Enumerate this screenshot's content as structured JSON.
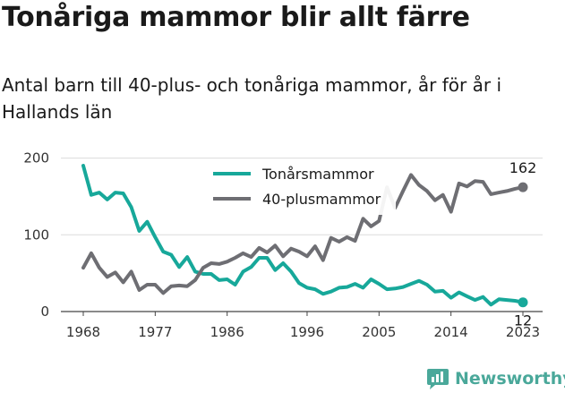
{
  "title": "Tonåriga mammor blir allt färre",
  "subtitle": "Antal barn till 40-plus- och tonåriga mammor, år för år i Hallands län",
  "brand": {
    "name": "Newsworthy",
    "icon": "newsworthy-logo-icon",
    "color": "#4aa89a"
  },
  "chart_data": {
    "type": "line",
    "x": [
      1968,
      1969,
      1970,
      1971,
      1972,
      1973,
      1974,
      1975,
      1976,
      1977,
      1978,
      1979,
      1980,
      1981,
      1982,
      1983,
      1984,
      1985,
      1986,
      1987,
      1988,
      1989,
      1990,
      1991,
      1992,
      1993,
      1994,
      1995,
      1996,
      1997,
      1998,
      1999,
      2000,
      2001,
      2002,
      2003,
      2004,
      2005,
      2006,
      2007,
      2008,
      2009,
      2010,
      2011,
      2012,
      2013,
      2014,
      2015,
      2016,
      2017,
      2018,
      2019,
      2020,
      2021,
      2022,
      2023
    ],
    "series": [
      {
        "name": "Tonårsmammor",
        "color": "#17a89a",
        "values": [
          190,
          152,
          155,
          146,
          155,
          154,
          136,
          105,
          117,
          97,
          78,
          74,
          58,
          71,
          52,
          49,
          49,
          41,
          42,
          35,
          52,
          58,
          70,
          70,
          54,
          63,
          52,
          37,
          31,
          29,
          23,
          26,
          31,
          32,
          36,
          31,
          42,
          36,
          29,
          30,
          32,
          36,
          40,
          35,
          26,
          27,
          18,
          25,
          20,
          15,
          19,
          9,
          16,
          15,
          14,
          12
        ]
      },
      {
        "name": "40-plusmammor",
        "color": "#6e6e73",
        "values": [
          57,
          76,
          57,
          45,
          51,
          38,
          52,
          28,
          35,
          35,
          24,
          33,
          34,
          33,
          41,
          57,
          63,
          62,
          65,
          70,
          76,
          71,
          83,
          77,
          86,
          72,
          82,
          78,
          72,
          85,
          67,
          96,
          91,
          97,
          92,
          121,
          111,
          118,
          162,
          135,
          157,
          178,
          165,
          157,
          145,
          152,
          130,
          167,
          163,
          170,
          169,
          153,
          155,
          157,
          160,
          162
        ]
      }
    ],
    "xticks": [
      "1968",
      "1977",
      "1986",
      "1996",
      "2005",
      "2014",
      "2023"
    ],
    "yticks": [
      "0",
      "100",
      "200"
    ],
    "ylim": [
      0,
      210
    ],
    "grid": true,
    "legend_position": "top-center",
    "end_labels": {
      "40-plusmammor": "162",
      "Tonårsmammor": "12"
    }
  }
}
